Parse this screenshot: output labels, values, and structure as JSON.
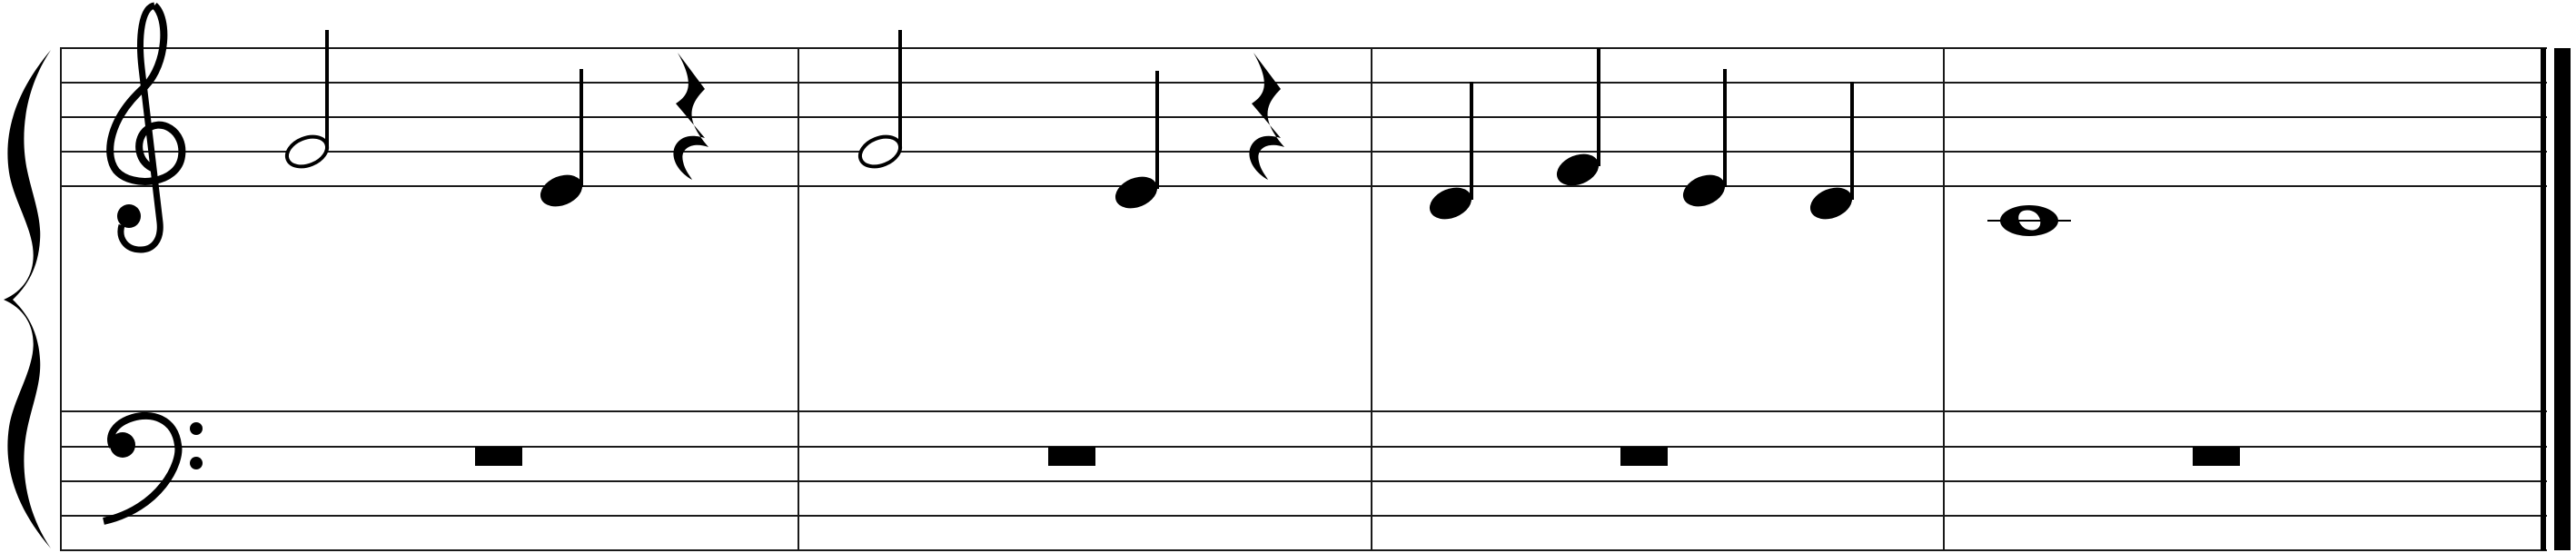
{
  "score": {
    "brace": "grand-staff-brace",
    "staves": [
      {
        "role": "upper",
        "clef": "treble-clef"
      },
      {
        "role": "lower",
        "clef": "bass-clef"
      }
    ],
    "upper_measures": [
      {
        "notes": [
          {
            "kind": "half",
            "pitch": "G4"
          },
          {
            "kind": "quarter",
            "pitch": "E4"
          },
          {
            "kind": "quarter-rest"
          }
        ]
      },
      {
        "notes": [
          {
            "kind": "half",
            "pitch": "G4"
          },
          {
            "kind": "quarter",
            "pitch": "E4"
          },
          {
            "kind": "quarter-rest"
          }
        ]
      },
      {
        "notes": [
          {
            "kind": "quarter",
            "pitch": "D4"
          },
          {
            "kind": "quarter",
            "pitch": "F4"
          },
          {
            "kind": "quarter",
            "pitch": "E4"
          },
          {
            "kind": "quarter",
            "pitch": "D4"
          }
        ]
      },
      {
        "notes": [
          {
            "kind": "whole",
            "pitch": "C4"
          }
        ]
      }
    ],
    "lower_measures": [
      {
        "notes": [
          {
            "kind": "whole-rest"
          }
        ]
      },
      {
        "notes": [
          {
            "kind": "whole-rest"
          }
        ]
      },
      {
        "notes": [
          {
            "kind": "whole-rest"
          }
        ]
      },
      {
        "notes": [
          {
            "kind": "whole-rest"
          }
        ]
      }
    ],
    "final_barline": "final-double-barline"
  }
}
